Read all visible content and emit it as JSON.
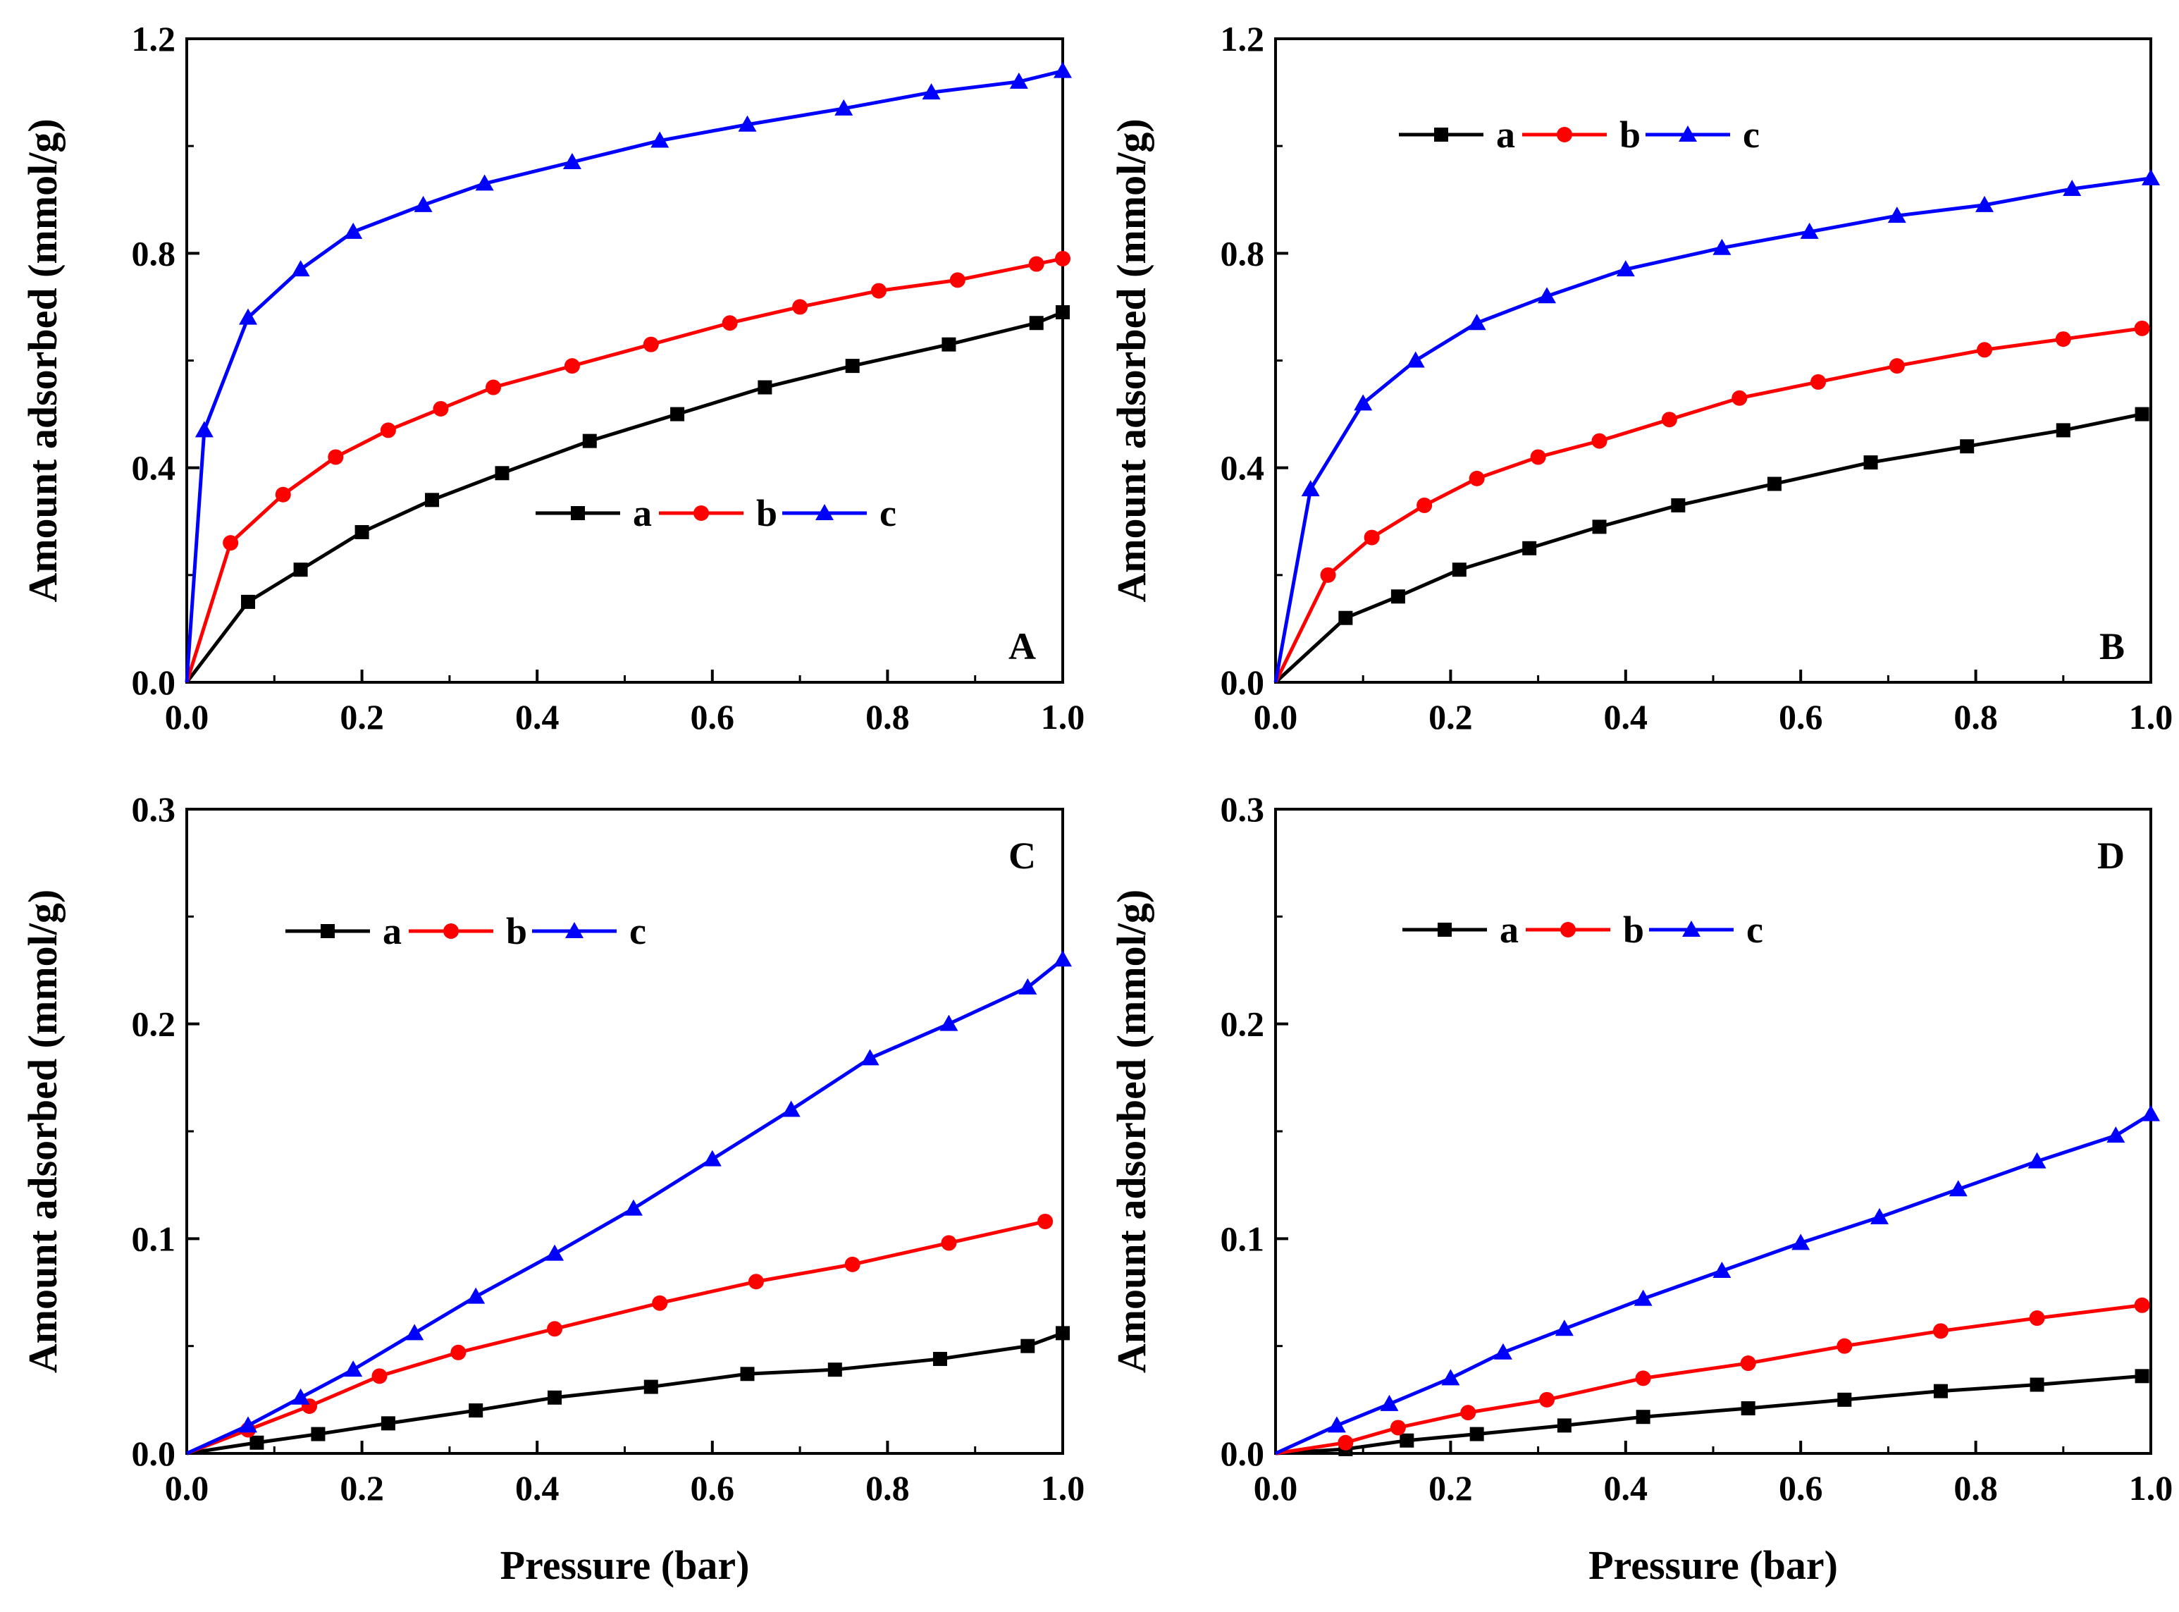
{
  "figure": {
    "xlabel": "Pressure (bar)",
    "ylabel": "Amount adsorbed (mmol/g)"
  },
  "chart_data": [
    {
      "panel": "A",
      "type": "line",
      "label": "A",
      "xlabel": "",
      "ylabel": "Amount adsorbed (mmol/g)",
      "xlim": [
        0,
        1.0
      ],
      "ylim": [
        0,
        1.2
      ],
      "xticks": [
        "0.0",
        "0.2",
        "0.4",
        "0.6",
        "0.8",
        "1.0"
      ],
      "yticks": [
        "0.0",
        "0.4",
        "0.8",
        "1.2"
      ],
      "legend_position": "lower-right",
      "series": [
        {
          "name": "a",
          "color": "#000000",
          "marker": "square",
          "x": [
            0,
            0.07,
            0.13,
            0.2,
            0.28,
            0.36,
            0.46,
            0.56,
            0.66,
            0.76,
            0.87,
            0.97,
            1.0
          ],
          "y": [
            0,
            0.15,
            0.21,
            0.28,
            0.34,
            0.39,
            0.45,
            0.5,
            0.55,
            0.59,
            0.63,
            0.67,
            0.69
          ]
        },
        {
          "name": "b",
          "color": "#ff0000",
          "marker": "circle",
          "x": [
            0,
            0.05,
            0.11,
            0.17,
            0.23,
            0.29,
            0.35,
            0.44,
            0.53,
            0.62,
            0.7,
            0.79,
            0.88,
            0.97,
            1.0
          ],
          "y": [
            0,
            0.26,
            0.35,
            0.42,
            0.47,
            0.51,
            0.55,
            0.59,
            0.63,
            0.67,
            0.7,
            0.73,
            0.75,
            0.78,
            0.79
          ]
        },
        {
          "name": "c",
          "color": "#0000ff",
          "marker": "triangle",
          "x": [
            0,
            0.02,
            0.07,
            0.13,
            0.19,
            0.27,
            0.34,
            0.44,
            0.54,
            0.64,
            0.75,
            0.85,
            0.95,
            1.0
          ],
          "y": [
            0,
            0.47,
            0.68,
            0.77,
            0.84,
            0.89,
            0.93,
            0.97,
            1.01,
            1.04,
            1.07,
            1.1,
            1.12,
            1.14
          ]
        }
      ]
    },
    {
      "panel": "B",
      "type": "line",
      "label": "B",
      "xlabel": "",
      "ylabel": "Amount adsorbed (mmol/g)",
      "xlim": [
        0,
        1.0
      ],
      "ylim": [
        0,
        1.2
      ],
      "xticks": [
        "0.0",
        "0.2",
        "0.4",
        "0.6",
        "0.8",
        "1.0"
      ],
      "yticks": [
        "0.0",
        "0.4",
        "0.8",
        "1.2"
      ],
      "legend_position": "top-left",
      "series": [
        {
          "name": "a",
          "color": "#000000",
          "marker": "square",
          "x": [
            0,
            0.08,
            0.14,
            0.21,
            0.29,
            0.37,
            0.46,
            0.57,
            0.68,
            0.79,
            0.9,
            0.99
          ],
          "y": [
            0,
            0.12,
            0.16,
            0.21,
            0.25,
            0.29,
            0.33,
            0.37,
            0.41,
            0.44,
            0.47,
            0.5
          ]
        },
        {
          "name": "b",
          "color": "#ff0000",
          "marker": "circle",
          "x": [
            0,
            0.06,
            0.11,
            0.17,
            0.23,
            0.3,
            0.37,
            0.45,
            0.53,
            0.62,
            0.71,
            0.81,
            0.9,
            0.99
          ],
          "y": [
            0,
            0.2,
            0.27,
            0.33,
            0.38,
            0.42,
            0.45,
            0.49,
            0.53,
            0.56,
            0.59,
            0.62,
            0.64,
            0.66
          ]
        },
        {
          "name": "c",
          "color": "#0000ff",
          "marker": "triangle",
          "x": [
            0,
            0.04,
            0.1,
            0.16,
            0.23,
            0.31,
            0.4,
            0.51,
            0.61,
            0.71,
            0.81,
            0.91,
            1.0
          ],
          "y": [
            0,
            0.36,
            0.52,
            0.6,
            0.67,
            0.72,
            0.77,
            0.81,
            0.84,
            0.87,
            0.89,
            0.92,
            0.94
          ]
        }
      ]
    },
    {
      "panel": "C",
      "type": "line",
      "label": "C",
      "xlabel": "Pressure (bar)",
      "ylabel": "Amount adsorbed (mmol/g)",
      "xlim": [
        0,
        1.0
      ],
      "ylim": [
        0,
        0.3
      ],
      "xticks": [
        "0.0",
        "0.2",
        "0.4",
        "0.6",
        "0.8",
        "1.0"
      ],
      "yticks": [
        "0.0",
        "0.1",
        "0.2",
        "0.3"
      ],
      "legend_position": "top-left",
      "series": [
        {
          "name": "a",
          "color": "#000000",
          "marker": "square",
          "x": [
            0,
            0.08,
            0.15,
            0.23,
            0.33,
            0.42,
            0.53,
            0.64,
            0.74,
            0.86,
            0.96,
            1.0
          ],
          "y": [
            0,
            0.005,
            0.009,
            0.014,
            0.02,
            0.026,
            0.031,
            0.037,
            0.039,
            0.044,
            0.05,
            0.056
          ]
        },
        {
          "name": "b",
          "color": "#ff0000",
          "marker": "circle",
          "x": [
            0,
            0.07,
            0.14,
            0.22,
            0.31,
            0.42,
            0.54,
            0.65,
            0.76,
            0.87,
            0.98
          ],
          "y": [
            0,
            0.011,
            0.022,
            0.036,
            0.047,
            0.058,
            0.07,
            0.08,
            0.088,
            0.098,
            0.108
          ]
        },
        {
          "name": "c",
          "color": "#0000ff",
          "marker": "triangle",
          "x": [
            0,
            0.07,
            0.13,
            0.19,
            0.26,
            0.33,
            0.42,
            0.51,
            0.6,
            0.69,
            0.78,
            0.87,
            0.96,
            1.0
          ],
          "y": [
            0,
            0.013,
            0.026,
            0.039,
            0.056,
            0.073,
            0.093,
            0.114,
            0.137,
            0.16,
            0.184,
            0.2,
            0.217,
            0.23
          ]
        }
      ]
    },
    {
      "panel": "D",
      "type": "line",
      "label": "D",
      "xlabel": "Pressure (bar)",
      "ylabel": "Amount adsorbed (mmol/g)",
      "xlim": [
        0,
        1.0
      ],
      "ylim": [
        0,
        0.3
      ],
      "xticks": [
        "0.0",
        "0.2",
        "0.4",
        "0.6",
        "0.8",
        "1.0"
      ],
      "yticks": [
        "0.0",
        "0.1",
        "0.2",
        "0.3"
      ],
      "legend_position": "top-left",
      "series": [
        {
          "name": "a",
          "color": "#000000",
          "marker": "square",
          "x": [
            0,
            0.08,
            0.15,
            0.23,
            0.33,
            0.42,
            0.54,
            0.65,
            0.76,
            0.87,
            0.99
          ],
          "y": [
            0,
            0.002,
            0.006,
            0.009,
            0.013,
            0.017,
            0.021,
            0.025,
            0.029,
            0.032,
            0.036
          ]
        },
        {
          "name": "b",
          "color": "#ff0000",
          "marker": "circle",
          "x": [
            0,
            0.08,
            0.14,
            0.22,
            0.31,
            0.42,
            0.54,
            0.65,
            0.76,
            0.87,
            0.99
          ],
          "y": [
            0,
            0.005,
            0.012,
            0.019,
            0.025,
            0.035,
            0.042,
            0.05,
            0.057,
            0.063,
            0.069
          ]
        },
        {
          "name": "c",
          "color": "#0000ff",
          "marker": "triangle",
          "x": [
            0,
            0.07,
            0.13,
            0.2,
            0.26,
            0.33,
            0.42,
            0.51,
            0.6,
            0.69,
            0.78,
            0.87,
            0.96,
            1.0
          ],
          "y": [
            0,
            0.013,
            0.023,
            0.035,
            0.047,
            0.058,
            0.072,
            0.085,
            0.098,
            0.11,
            0.123,
            0.136,
            0.148,
            0.158
          ]
        }
      ]
    }
  ]
}
